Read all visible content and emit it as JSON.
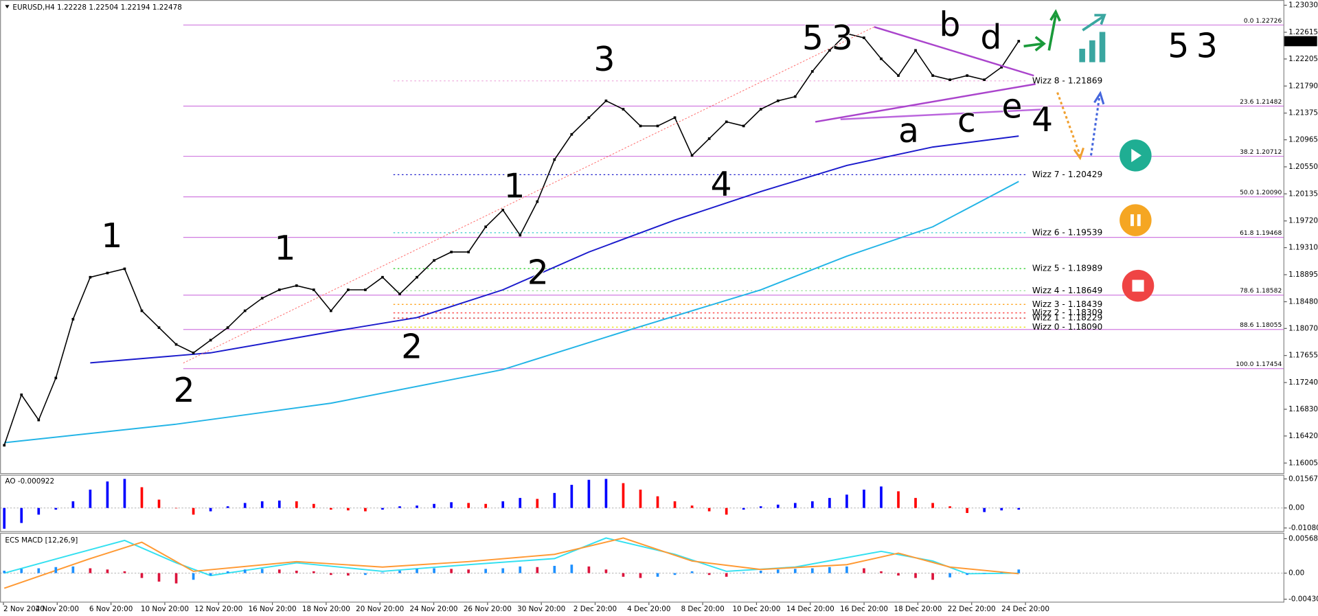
{
  "header": "EURUSD,H4  1.22228 1.22504 1.22194 1.22478",
  "waves": [
    {
      "text": "1",
      "color": "#5b2a86"
    },
    {
      "text": "2",
      "color": "#5b2a86"
    },
    {
      "text": "1",
      "color": "#ff33cc"
    },
    {
      "text": "2",
      "color": "#ff33cc"
    },
    {
      "text": "3",
      "color": "#aaaaaa"
    },
    {
      "text": "1",
      "color": "#aaaaaa"
    },
    {
      "text": "2",
      "color": "#aaaaaa"
    },
    {
      "text": "4",
      "color": "#aaaaaa"
    },
    {
      "text": "5",
      "color": "#aaaaaa"
    },
    {
      "text": "3",
      "color": "#ff33cc"
    },
    {
      "text": "a",
      "color": "#aaaaaa"
    },
    {
      "text": "b",
      "color": "#aaaaaa"
    },
    {
      "text": "c",
      "color": "#aaaaaa"
    },
    {
      "text": "d",
      "color": "#aaaaaa"
    },
    {
      "text": "e",
      "color": "#aaaaaa"
    },
    {
      "text": "4",
      "color": "#ff33cc"
    },
    {
      "text": "5",
      "color": "#ff33cc"
    },
    {
      "text": "3",
      "color": "#5b2a86"
    }
  ],
  "chart_data": [
    {
      "type": "line",
      "color": "#000000",
      "values": [
        1.16278,
        1.17052,
        1.16665,
        1.1731,
        1.18212,
        1.18856,
        1.18921,
        1.18985,
        1.18341,
        1.18083,
        1.17825,
        1.17696,
        1.1789,
        1.18083,
        1.18341,
        1.18534,
        1.18663,
        1.18727,
        1.18663,
        1.18341,
        1.18663,
        1.18663,
        1.18856,
        1.18599,
        1.18856,
        1.19114,
        1.19243,
        1.19243,
        1.1963,
        1.19887,
        1.19501,
        1.20016,
        1.20661,
        1.21048,
        1.21305,
        1.21563,
        1.21434,
        1.21177,
        1.21177,
        1.21305,
        1.20725,
        1.20983,
        1.21241,
        1.21177,
        1.21434,
        1.21563,
        1.21628,
        1.22014,
        1.22337,
        1.22594,
        1.2253,
        1.22208,
        1.2195,
        1.22337,
        1.2195,
        1.21886,
        1.2195,
        1.21886,
        1.22079,
        1.22478
      ],
      "current_price": 1.22478,
      "ylim": [
        1.1585,
        1.2311
      ],
      "yticks": [
        {
          "value": 1.2303,
          "label": "1.23030"
        },
        1.22615,
        1.22205,
        {
          "value": 1.2179,
          "label": "1.21790"
        },
        1.21375,
        1.20965,
        {
          "value": 1.2055,
          "label": "1.20550"
        },
        1.20135,
        {
          "value": 1.1972,
          "label": "1.19720"
        },
        {
          "value": 1.1931,
          "label": "1.19310"
        },
        1.18895,
        {
          "value": 1.1848,
          "label": "1.18480"
        },
        {
          "value": 1.1807,
          "label": "1.18070"
        },
        1.17655,
        {
          "value": 1.1724,
          "label": "1.17240"
        },
        {
          "value": 1.1683,
          "label": "1.16830"
        },
        {
          "value": 1.1642,
          "label": "1.16420"
        },
        1.16005
      ],
      "xtick_labels": [
        "2 Nov 2020",
        "4 Nov 20:00",
        "6 Nov 20:00",
        "10 Nov 20:00",
        "12 Nov 20:00",
        "16 Nov 20:00",
        "18 Nov 20:00",
        "20 Nov 20:00",
        "24 Nov 20:00",
        "26 Nov 20:00",
        "30 Nov 20:00",
        "2 Dec 20:00",
        "4 Dec 20:00",
        "8 Dec 20:00",
        "10 Dec 20:00",
        "14 Dec 20:00",
        "16 Dec 20:00",
        "18 Dec 20:00",
        "22 Dec 20:00",
        "24 Dec 20:00"
      ],
      "lines": [
        {
          "color": "#1a1acc",
          "x": [
            5,
            12,
            19,
            24,
            29,
            34,
            39,
            44,
            49,
            54,
            59
          ],
          "values": [
            1.17542,
            1.17696,
            1.18019,
            1.18237,
            1.18663,
            1.19243,
            1.19733,
            1.20171,
            1.20571,
            1.20854,
            1.21022
          ]
        },
        {
          "color": "#22b4e6",
          "x": [
            0,
            10,
            19,
            29,
            36,
            44,
            49,
            54,
            59
          ],
          "values": [
            1.16317,
            1.16601,
            1.16923,
            1.17439,
            1.18019,
            1.18663,
            1.19179,
            1.1963,
            1.20326
          ]
        }
      ],
      "fib_levels": [
        {
          "label": "0.0  1.22726",
          "value": 1.22726
        },
        {
          "label": "23.6  1.21482",
          "value": 1.21482
        },
        {
          "label": "38.2  1.20712",
          "value": 1.20712
        },
        {
          "label": "50.0  1.20090",
          "value": 1.2009
        },
        {
          "label": "61.8  1.19468",
          "value": 1.19468
        },
        {
          "label": "78.6  1.18582",
          "value": 1.18582
        },
        {
          "label": "88.6  1.18055",
          "value": 1.18055
        },
        {
          "label": "100.0  1.17454",
          "value": 1.17454
        }
      ],
      "fib_color": "#d07be0",
      "wizz_levels": [
        {
          "label": "Wizz 8 - 1.21869",
          "value": 1.21869,
          "color": "#eeaadd"
        },
        {
          "label": "Wizz 7 - 1.20429",
          "value": 1.20429,
          "color": "#1a1acc"
        },
        {
          "label": "Wizz 6 - 1.19539",
          "value": 1.19539,
          "color": "#33cccc"
        },
        {
          "label": "Wizz 5 - 1.18989",
          "value": 1.18989,
          "color": "#22cc22"
        },
        {
          "label": "Wizz 4 - 1.18649",
          "value": 1.18649,
          "color": "#99dd99"
        },
        {
          "label": "Wizz 3 - 1.18439",
          "value": 1.18439,
          "color": "#ff9900"
        },
        {
          "label": "Wizz 2 - 1.18309",
          "value": 1.18309,
          "color": "#ff3333"
        },
        {
          "label": "Wizz 1 - 1.18229",
          "value": 1.18229,
          "color": "#cc0000"
        },
        {
          "label": "Wizz 0 - 1.18090",
          "value": 1.1809,
          "color": "#eedd00"
        }
      ]
    },
    {
      "type": "bar",
      "title": "AO -0.000922",
      "up_color": "#0000ff",
      "down_color": "#ff0000",
      "values": [
        -0.0112,
        -0.0081,
        -0.0036,
        -0.0009,
        0.0036,
        0.0099,
        0.0143,
        0.0157,
        0.0112,
        0.0045,
        0,
        -0.0036,
        -0.0018,
        0.0009,
        0.0027,
        0.0036,
        0.004,
        0.0036,
        0.0022,
        -0.0009,
        -0.0013,
        -0.0018,
        -0.0009,
        0.0009,
        0.0013,
        0.0022,
        0.0031,
        0.0027,
        0.0022,
        0.0036,
        0.0054,
        0.0049,
        0.0081,
        0.0125,
        0.0152,
        0.0157,
        0.0134,
        0.0099,
        0.0063,
        0.0036,
        0.0013,
        -0.0018,
        -0.0036,
        -0.0009,
        0.0009,
        0.0018,
        0.0027,
        0.0036,
        0.0054,
        0.0072,
        0.0099,
        0.0116,
        0.009,
        0.0054,
        0.0027,
        0.0009,
        -0.0027,
        -0.0022,
        -0.0013,
        -0.0009
      ],
      "ylim": [
        -0.0125,
        0.0179
      ],
      "yticks": [
        0.015678,
        {
          "value": 0,
          "label": "0.00"
        },
        -0.010805
      ]
    },
    {
      "type": "bar",
      "title": "ECS MACD [12,26,9]",
      "up_color": "#1e90ff",
      "down_color": "#dc143c",
      "values": [
        0.0004,
        0.0007,
        0.0008,
        0.001,
        0.0011,
        0.0008,
        0.0006,
        0.0003,
        -0.0008,
        -0.0014,
        -0.0017,
        -0.0011,
        -0.0004,
        0.0003,
        0.0006,
        0.0007,
        0.0006,
        0.0004,
        0.0003,
        -0.0003,
        -0.0004,
        -0.0003,
        0.0001,
        0.0004,
        0.0007,
        0.0008,
        0.0007,
        0.0006,
        0.0007,
        0.0008,
        0.0011,
        0.001,
        0.0012,
        0.0014,
        0.0011,
        0.0006,
        -0.0006,
        -0.0008,
        -0.0006,
        -0.0003,
        0.0003,
        -0.0003,
        -0.0006,
        0.0001,
        0.0004,
        0.0006,
        0.0007,
        0.0008,
        0.001,
        0.0011,
        0.0008,
        0.0003,
        -0.0004,
        -0.0008,
        -0.0011,
        -0.0007,
        -0.0003,
        -0.0001,
        0.0001,
        0.0006
      ],
      "lines": [
        {
          "color": "#33e0f0",
          "x": [
            0,
            4,
            7,
            10,
            12,
            17,
            22,
            27,
            32,
            35,
            39,
            42,
            46,
            51,
            54,
            56,
            59
          ],
          "values": [
            0,
            0.0031,
            0.0054,
            0.0017,
            -0.0004,
            0.0017,
            0.0003,
            0.0014,
            0.0024,
            0.0058,
            0.0031,
            0.0003,
            0.001,
            0.0036,
            0.002,
            -0.0001,
            0
          ]
        },
        {
          "color": "#ff9933",
          "x": [
            0,
            5,
            8,
            11,
            17,
            22,
            27,
            32,
            36,
            40,
            44,
            49,
            52,
            55,
            59
          ],
          "values": [
            -0.0025,
            0.0024,
            0.0051,
            0.0003,
            0.0019,
            0.001,
            0.0019,
            0.0031,
            0.0058,
            0.002,
            0.0006,
            0.0014,
            0.0033,
            0.001,
            -0.0001
          ]
        }
      ],
      "ylim": [
        -0.00486,
        0.00652
      ],
      "yticks": [
        0.0056871,
        {
          "value": 0,
          "label": "0.00"
        },
        -0.0043047
      ]
    }
  ]
}
